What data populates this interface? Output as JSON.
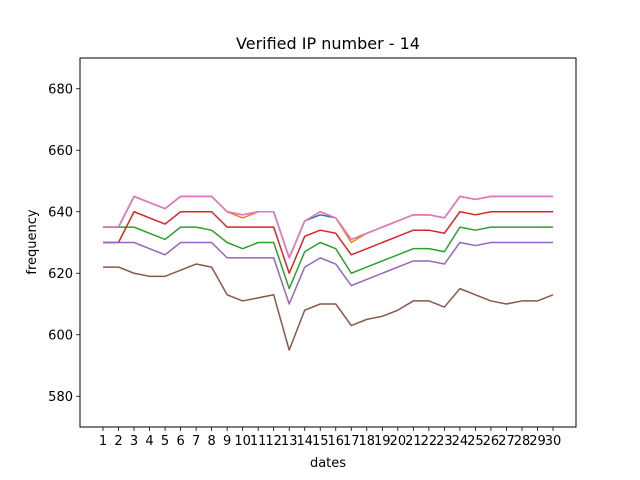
{
  "chart_data": {
    "type": "line",
    "title": "Verified IP number - 14",
    "xlabel": "dates",
    "ylabel": "frequency",
    "ylim": [
      570,
      690
    ],
    "yticks": [
      580,
      600,
      620,
      640,
      660,
      680
    ],
    "grid": false,
    "x": [
      1,
      2,
      3,
      4,
      5,
      6,
      7,
      8,
      9,
      10,
      11,
      12,
      13,
      14,
      15,
      16,
      17,
      18,
      19,
      20,
      21,
      22,
      23,
      24,
      25,
      26,
      27,
      28,
      29,
      30
    ],
    "series": [
      {
        "color": "#1f77b4",
        "values": [
          635,
          635,
          645,
          643,
          641,
          645,
          645,
          645,
          640,
          639,
          640,
          640,
          625,
          637,
          639,
          638,
          631,
          633,
          635,
          637,
          639,
          639,
          638,
          645,
          644,
          645,
          645,
          645,
          645,
          645
        ]
      },
      {
        "color": "#ff7f0e",
        "values": [
          635,
          635,
          645,
          643,
          641,
          645,
          645,
          645,
          640,
          638,
          640,
          640,
          625,
          637,
          640,
          638,
          630,
          633,
          635,
          637,
          639,
          639,
          638,
          645,
          644,
          645,
          645,
          645,
          645,
          645
        ]
      },
      {
        "color": "#2ca02c",
        "values": [
          635,
          635,
          635,
          633,
          631,
          635,
          635,
          634,
          630,
          628,
          630,
          630,
          615,
          627,
          630,
          628,
          620,
          622,
          624,
          626,
          628,
          628,
          627,
          635,
          634,
          635,
          635,
          635,
          635,
          635
        ]
      },
      {
        "color": "#d62728",
        "values": [
          630,
          630,
          640,
          638,
          636,
          640,
          640,
          640,
          635,
          635,
          635,
          635,
          620,
          632,
          634,
          633,
          626,
          628,
          630,
          632,
          634,
          634,
          633,
          640,
          639,
          640,
          640,
          640,
          640,
          640
        ]
      },
      {
        "color": "#9467bd",
        "values": [
          630,
          630,
          630,
          628,
          626,
          630,
          630,
          630,
          625,
          625,
          625,
          625,
          610,
          622,
          625,
          623,
          616,
          618,
          620,
          622,
          624,
          624,
          623,
          630,
          629,
          630,
          630,
          630,
          630,
          630
        ]
      },
      {
        "color": "#8c564b",
        "values": [
          622,
          622,
          620,
          619,
          619,
          621,
          623,
          622,
          613,
          611,
          612,
          613,
          595,
          608,
          610,
          610,
          603,
          605,
          606,
          608,
          611,
          611,
          609,
          615,
          613,
          611,
          610,
          611,
          611,
          613
        ]
      },
      {
        "color": "#e377c2",
        "values": [
          635,
          635,
          645,
          643,
          641,
          645,
          645,
          645,
          640,
          639,
          640,
          640,
          625,
          637,
          640,
          638,
          631,
          633,
          635,
          637,
          639,
          639,
          638,
          645,
          644,
          645,
          645,
          645,
          645,
          645
        ]
      }
    ]
  }
}
